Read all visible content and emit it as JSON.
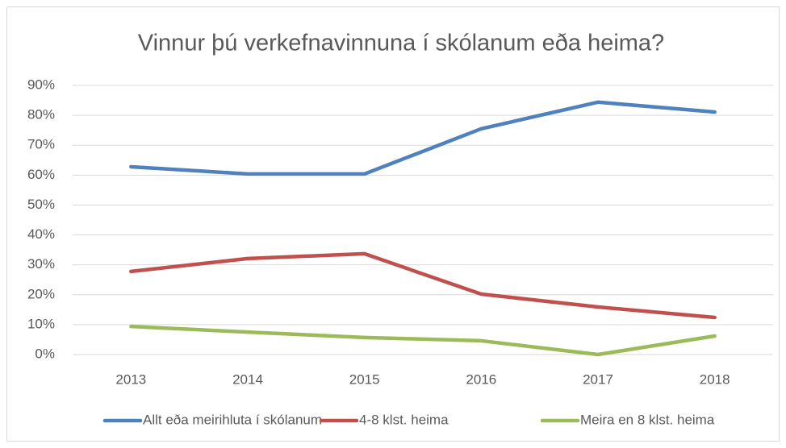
{
  "chart_data": {
    "type": "line",
    "title": "Vinnur þú verkefnavinnuna í skólanum eða heima?",
    "categories": [
      "2013",
      "2014",
      "2015",
      "2016",
      "2017",
      "2018"
    ],
    "series": [
      {
        "name": "Allt eða meirihluta í skólanum",
        "color": "#4f81bd",
        "values": [
          62.8,
          60.4,
          60.4,
          75.5,
          84.4,
          81.1
        ]
      },
      {
        "name": "4-8 klst. heima",
        "color": "#c0504d",
        "values": [
          27.8,
          32.1,
          33.7,
          20.2,
          15.9,
          12.4
        ]
      },
      {
        "name": "Meira en 8 klst. heima",
        "color": "#9bbb59",
        "values": [
          9.4,
          7.5,
          5.7,
          4.6,
          0,
          6.2
        ]
      }
    ],
    "ylim": [
      0,
      90
    ],
    "yticks": [
      {
        "value": 0,
        "label": "0%"
      },
      {
        "value": 10,
        "label": "10%"
      },
      {
        "value": 20,
        "label": "20%"
      },
      {
        "value": 30,
        "label": "30%"
      },
      {
        "value": 40,
        "label": "40%"
      },
      {
        "value": 50,
        "label": "50%"
      },
      {
        "value": 60,
        "label": "60%"
      },
      {
        "value": 70,
        "label": "70%"
      },
      {
        "value": 80,
        "label": "80%"
      },
      {
        "value": 90,
        "label": "90%"
      }
    ],
    "grid": true,
    "legend": "bottom"
  }
}
